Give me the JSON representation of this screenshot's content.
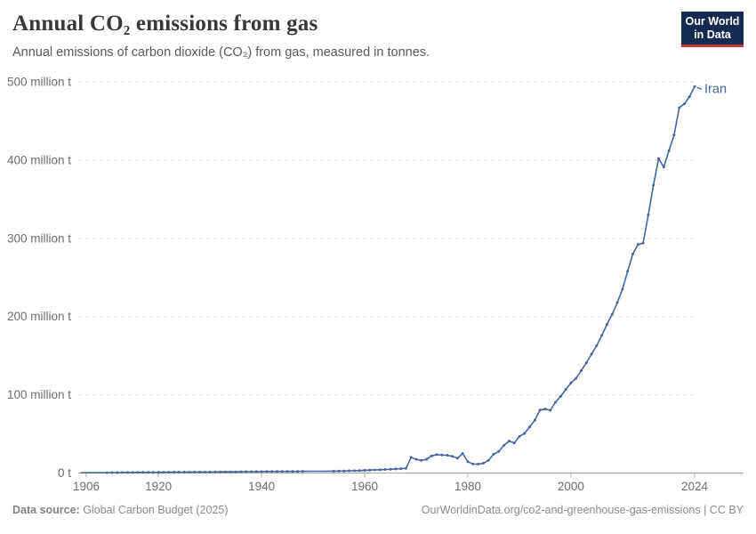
{
  "header": {
    "title": "Annual CO₂ emissions from gas",
    "subtitle": "Annual emissions of carbon dioxide (CO₂) from gas, measured in tonnes."
  },
  "logo": {
    "line1": "Our World",
    "line2": "in Data"
  },
  "footer": {
    "source_label": "Data source:",
    "source_value": " Global Carbon Budget (2025)",
    "right_text": "OurWorldinData.org/co2-and-greenhouse-gas-emissions | CC BY"
  },
  "colors": {
    "line": "#46659e",
    "end_label": "#46659e",
    "grid": "#dedede",
    "axis": "#a8a8a8",
    "tick": "#b0b0b0",
    "tick_label": "#6e6e6e",
    "logo_bg": "#122b4e",
    "logo_red": "#cd3235"
  },
  "chart_data": {
    "type": "line",
    "title": "Annual CO₂ emissions from gas",
    "xlabel": "",
    "ylabel": "",
    "y_unit": "t",
    "xlim": [
      1905,
      2024
    ],
    "ylim": [
      0,
      500000000
    ],
    "grid": "horizontal dashed",
    "legend_position": "end-of-line label",
    "x_ticks": [
      1906,
      1920,
      1940,
      1960,
      1980,
      2000,
      2024
    ],
    "y_ticks": [
      {
        "value": 0,
        "label": "0 t"
      },
      {
        "value": 100,
        "label": "100 million t"
      },
      {
        "value": 200,
        "label": "200 million t"
      },
      {
        "value": 300,
        "label": "300 million t"
      },
      {
        "value": 400,
        "label": "400 million t"
      },
      {
        "value": 500,
        "label": "500 million t"
      }
    ],
    "y_values_in": "million tonnes",
    "series": [
      {
        "name": "Iran",
        "end_label": "Iran",
        "color": "#46659e",
        "marker_skip_year_ranges": [
          [
            1905,
            1909
          ],
          [
            1949,
            1953
          ]
        ],
        "points": [
          [
            1905,
            0.3
          ],
          [
            1906,
            0.3
          ],
          [
            1907,
            0.4
          ],
          [
            1908,
            0.4
          ],
          [
            1909,
            0.5
          ],
          [
            1910,
            0.5
          ],
          [
            1911,
            0.6
          ],
          [
            1912,
            0.6
          ],
          [
            1913,
            0.7
          ],
          [
            1914,
            0.7
          ],
          [
            1915,
            0.7
          ],
          [
            1916,
            0.8
          ],
          [
            1917,
            0.8
          ],
          [
            1918,
            0.9
          ],
          [
            1919,
            0.9
          ],
          [
            1920,
            0.9
          ],
          [
            1921,
            1.0
          ],
          [
            1922,
            1.0
          ],
          [
            1923,
            1.1
          ],
          [
            1924,
            1.1
          ],
          [
            1925,
            1.1
          ],
          [
            1926,
            1.2
          ],
          [
            1927,
            1.2
          ],
          [
            1928,
            1.3
          ],
          [
            1929,
            1.3
          ],
          [
            1930,
            1.3
          ],
          [
            1931,
            1.4
          ],
          [
            1932,
            1.4
          ],
          [
            1933,
            1.5
          ],
          [
            1934,
            1.5
          ],
          [
            1935,
            1.5
          ],
          [
            1936,
            1.6
          ],
          [
            1937,
            1.7
          ],
          [
            1938,
            1.7
          ],
          [
            1939,
            1.8
          ],
          [
            1940,
            1.8
          ],
          [
            1941,
            1.9
          ],
          [
            1942,
            1.9
          ],
          [
            1943,
            2.0
          ],
          [
            1944,
            2.0
          ],
          [
            1945,
            2.0
          ],
          [
            1946,
            2.1
          ],
          [
            1947,
            2.1
          ],
          [
            1948,
            2.2
          ],
          [
            1949,
            2.2
          ],
          [
            1950,
            2.3
          ],
          [
            1951,
            2.3
          ],
          [
            1952,
            2.3
          ],
          [
            1953,
            2.4
          ],
          [
            1954,
            2.4
          ],
          [
            1955,
            2.5
          ],
          [
            1956,
            2.6
          ],
          [
            1957,
            2.8
          ],
          [
            1958,
            3.0
          ],
          [
            1959,
            3.2
          ],
          [
            1960,
            3.5
          ],
          [
            1961,
            3.7
          ],
          [
            1962,
            4.0
          ],
          [
            1963,
            4.2
          ],
          [
            1964,
            4.5
          ],
          [
            1965,
            4.8
          ],
          [
            1966,
            5.2
          ],
          [
            1967,
            5.6
          ],
          [
            1968,
            6.0
          ],
          [
            1969,
            20
          ],
          [
            1970,
            17.5
          ],
          [
            1971,
            16.3
          ],
          [
            1972,
            17.5
          ],
          [
            1973,
            22
          ],
          [
            1974,
            23.5
          ],
          [
            1975,
            23
          ],
          [
            1976,
            22.8
          ],
          [
            1977,
            21.3
          ],
          [
            1978,
            19
          ],
          [
            1979,
            25
          ],
          [
            1980,
            14.5
          ],
          [
            1981,
            11.5
          ],
          [
            1982,
            11.4
          ],
          [
            1983,
            12.5
          ],
          [
            1984,
            16.3
          ],
          [
            1985,
            24
          ],
          [
            1986,
            27.7
          ],
          [
            1987,
            35.3
          ],
          [
            1988,
            41
          ],
          [
            1989,
            38.4
          ],
          [
            1990,
            46.8
          ],
          [
            1991,
            50.5
          ],
          [
            1992,
            59
          ],
          [
            1993,
            67.6
          ],
          [
            1994,
            80.5
          ],
          [
            1995,
            81.8
          ],
          [
            1996,
            80.2
          ],
          [
            1997,
            90.4
          ],
          [
            1998,
            98
          ],
          [
            1999,
            106.8
          ],
          [
            2000,
            115.2
          ],
          [
            2001,
            121
          ],
          [
            2002,
            131
          ],
          [
            2003,
            141
          ],
          [
            2004,
            152
          ],
          [
            2005,
            163
          ],
          [
            2006,
            176
          ],
          [
            2007,
            190
          ],
          [
            2008,
            203
          ],
          [
            2009,
            218
          ],
          [
            2010,
            235
          ],
          [
            2011,
            258
          ],
          [
            2012,
            280
          ],
          [
            2013,
            292
          ],
          [
            2014,
            294
          ],
          [
            2015,
            330
          ],
          [
            2016,
            368
          ],
          [
            2017,
            402
          ],
          [
            2018,
            391
          ],
          [
            2019,
            412
          ],
          [
            2020,
            432
          ],
          [
            2021,
            467
          ],
          [
            2022,
            472
          ],
          [
            2023,
            481
          ],
          [
            2024,
            494
          ]
        ]
      }
    ]
  }
}
